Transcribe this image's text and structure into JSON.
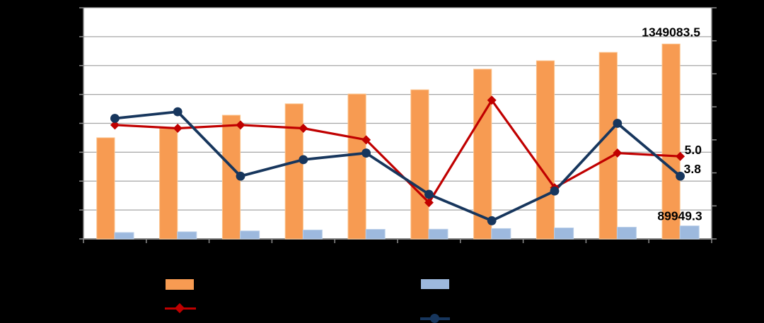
{
  "page": {
    "background": "#000000",
    "title": ""
  },
  "colors": {
    "page_bg": "#000000",
    "plot_bg": "#FFFFFF",
    "gridline": "#A6A6A6",
    "axis": "#8C8C8C",
    "label_text": "#000000",
    "bar_primary": "#F79B52",
    "bar_primary_border": "#FBC38D",
    "bar_secondary": "#9DB9DE",
    "bar_secondary_border": "#BACFE9",
    "line_red": "#C00000",
    "line_navy": "#17365D"
  },
  "chart_data": {
    "type": "bar",
    "combo": "dual-axis bars + lines",
    "title": "",
    "xlabel": "",
    "ylabel": "",
    "categories": [
      "",
      "",
      "",
      "",
      "",
      "",
      "",
      "",
      "",
      ""
    ],
    "left_axis": {
      "min": 0,
      "max": 1600000,
      "major_intervals": 8,
      "tick_labels_visible": false
    },
    "right_axis": {
      "min": 0,
      "max": 14,
      "major_intervals": 7,
      "tick_labels_visible": false
    },
    "grid": "horizontal-on",
    "legend_position": "bottom",
    "series": [
      {
        "id": "bar_primary",
        "type": "bar",
        "axis": "left",
        "color_key": "bar_primary",
        "border_key": "bar_primary_border",
        "values": [
          700000,
          763000,
          856000,
          935000,
          1003000,
          1032000,
          1175000,
          1233000,
          1291000,
          1349083.5
        ],
        "last_point_label": "1349083.5"
      },
      {
        "id": "bar_secondary",
        "type": "bar",
        "axis": "left",
        "color_key": "bar_secondary",
        "border_key": "bar_secondary_border",
        "values": [
          44000,
          49000,
          55000,
          61500,
          66000,
          67000,
          71500,
          76000,
          81000,
          89949.3
        ],
        "last_point_label": "89949.3"
      },
      {
        "id": "line_red",
        "type": "line",
        "axis": "right",
        "marker": "diamond",
        "color_key": "line_red",
        "values": [
          6.9,
          6.7,
          6.9,
          6.7,
          6.0,
          2.2,
          8.4,
          3.1,
          5.2,
          5.0
        ],
        "last_point_label": "5.0"
      },
      {
        "id": "line_navy",
        "type": "line",
        "axis": "right",
        "marker": "circle",
        "color_key": "line_navy",
        "values": [
          7.3,
          7.7,
          3.8,
          4.8,
          5.2,
          2.7,
          1.1,
          2.9,
          7.0,
          3.8
        ],
        "last_point_label": "3.8"
      }
    ],
    "visible_data_labels": [
      "1349083.5",
      "89949.3",
      "5.0",
      "3.8"
    ],
    "legend": {
      "items": [
        {
          "series": "bar_primary",
          "swatch": "bar-swatch",
          "label": ""
        },
        {
          "series": "line_red",
          "swatch": "line-diamond",
          "label": ""
        },
        {
          "series": "bar_secondary",
          "swatch": "bar-swatch",
          "label": ""
        },
        {
          "series": "line_navy",
          "swatch": "line-circle",
          "label": ""
        }
      ]
    }
  }
}
